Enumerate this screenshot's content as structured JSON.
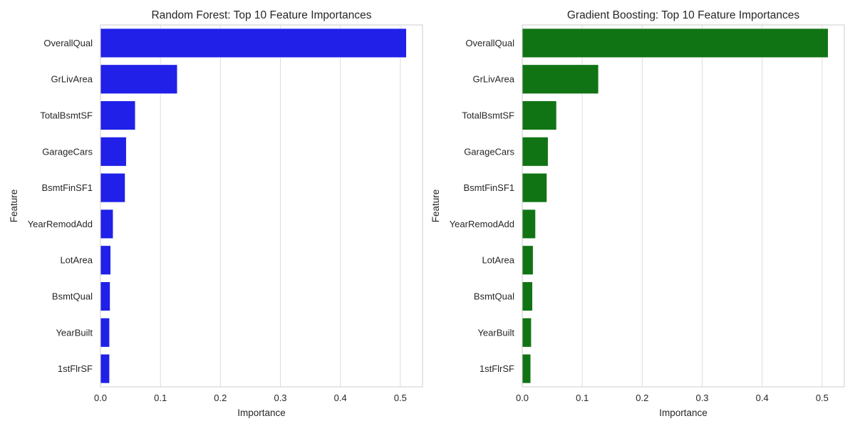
{
  "chart_data": [
    {
      "type": "bar",
      "orientation": "horizontal",
      "title": "Random Forest: Top 10 Feature Importances",
      "xlabel": "Importance",
      "ylabel": "Feature",
      "categories": [
        "OverallQual",
        "GrLivArea",
        "TotalBsmtSF",
        "GarageCars",
        "BsmtFinSF1",
        "YearRemodAdd",
        "LotArea",
        "BsmtQual",
        "YearBuilt",
        "1stFlrSF"
      ],
      "values": [
        0.51,
        0.128,
        0.058,
        0.043,
        0.041,
        0.021,
        0.017,
        0.016,
        0.015,
        0.015
      ],
      "xlim": [
        0,
        0.537
      ],
      "xticks": [
        "0.0",
        "0.1",
        "0.2",
        "0.3",
        "0.4",
        "0.5"
      ],
      "bar_color": "#2020e8",
      "grid": "vertical"
    },
    {
      "type": "bar",
      "orientation": "horizontal",
      "title": "Gradient Boosting: Top 10 Feature Importances",
      "xlabel": "Importance",
      "ylabel": "Feature",
      "categories": [
        "OverallQual",
        "GrLivArea",
        "TotalBsmtSF",
        "GarageCars",
        "BsmtFinSF1",
        "YearRemodAdd",
        "LotArea",
        "BsmtQual",
        "YearBuilt",
        "1stFlrSF"
      ],
      "values": [
        0.51,
        0.127,
        0.057,
        0.043,
        0.041,
        0.022,
        0.018,
        0.017,
        0.015,
        0.014
      ],
      "xlim": [
        0,
        0.537
      ],
      "xticks": [
        "0.0",
        "0.1",
        "0.2",
        "0.3",
        "0.4",
        "0.5"
      ],
      "bar_color": "#117414",
      "grid": "vertical"
    }
  ]
}
